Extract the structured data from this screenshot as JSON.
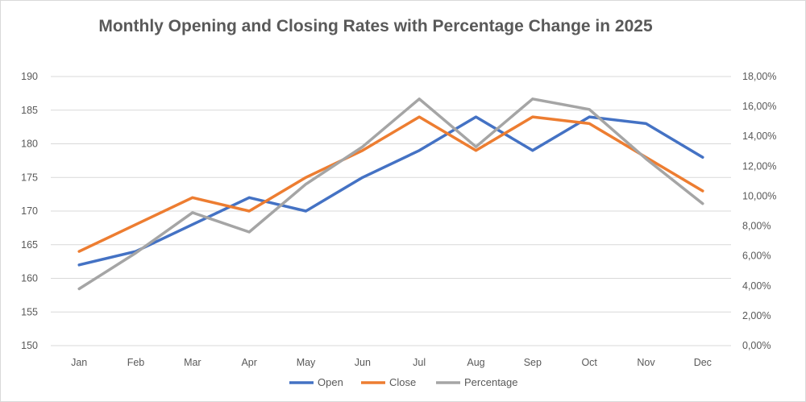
{
  "chart_data": {
    "type": "line",
    "title": "Monthly Opening and Closing Rates with Percentage Change in 2025",
    "categories": [
      "Jan",
      "Feb",
      "Mar",
      "Apr",
      "May",
      "Jun",
      "Jul",
      "Aug",
      "Sep",
      "Oct",
      "Nov",
      "Dec"
    ],
    "series": [
      {
        "name": "Open",
        "axis": "left",
        "color": "#4472c4",
        "values": [
          162,
          164,
          168,
          172,
          170,
          175,
          179,
          184,
          179,
          184,
          183,
          178
        ]
      },
      {
        "name": "Close",
        "axis": "left",
        "color": "#ed7d31",
        "values": [
          164,
          168,
          172,
          170,
          175,
          179,
          184,
          179,
          184,
          183,
          178,
          173
        ]
      },
      {
        "name": "Percentage",
        "axis": "right",
        "color": "#a5a5a5",
        "values": [
          3.8,
          6.2,
          8.9,
          7.6,
          10.8,
          13.3,
          16.5,
          13.3,
          16.5,
          15.8,
          12.5,
          9.5
        ]
      }
    ],
    "y_left": {
      "min": 150,
      "max": 190,
      "ticks": [
        "150",
        "155",
        "160",
        "165",
        "170",
        "175",
        "180",
        "185",
        "190"
      ]
    },
    "y_right": {
      "min": 0,
      "max": 18,
      "ticks": [
        "0,00%",
        "2,00%",
        "4,00%",
        "6,00%",
        "8,00%",
        "10,00%",
        "12,00%",
        "14,00%",
        "16,00%",
        "18,00%"
      ]
    },
    "grid": true,
    "legend_position": "bottom"
  }
}
